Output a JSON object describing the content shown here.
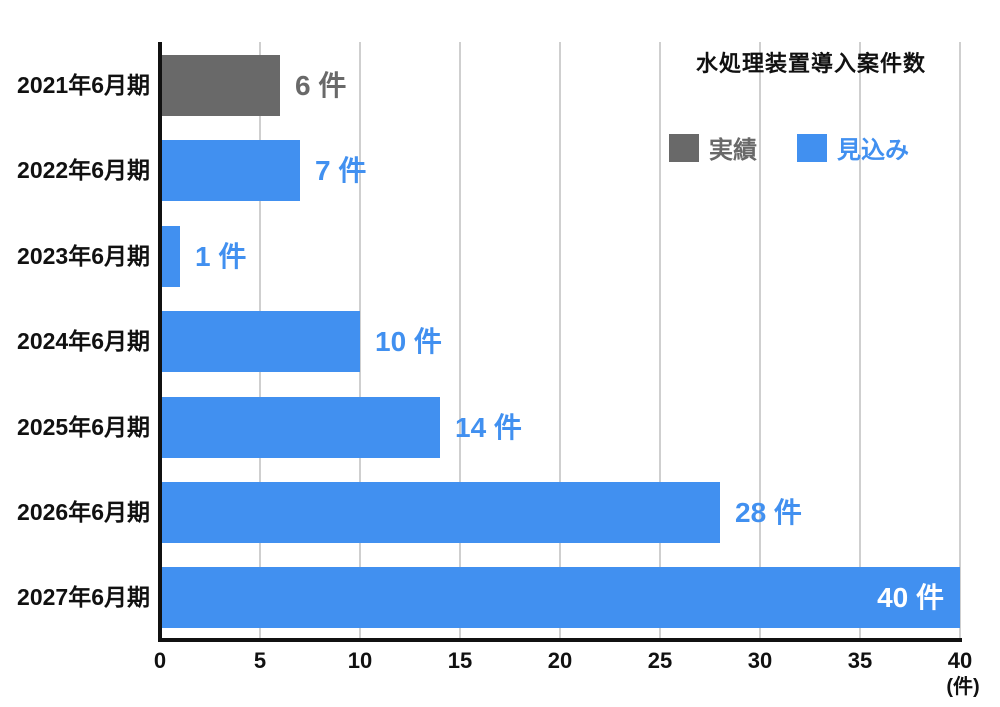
{
  "chart": {
    "title": "水処理装置導入案件数",
    "axis_unit_label": "(件)",
    "colors": {
      "actual": "#696969",
      "forecast": "#4190f0",
      "gridline": "#cfcfcf",
      "axis": "#111111",
      "inside_value_label": "#ffffff",
      "background": "#ffffff"
    }
  },
  "chart_data": {
    "type": "bar",
    "orientation": "horizontal",
    "title": "水処理装置導入案件数",
    "categories": [
      "2021年6月期",
      "2022年6月期",
      "2023年6月期",
      "2024年6月期",
      "2025年6月期",
      "2026年6月期",
      "2027年6月期"
    ],
    "series": [
      {
        "name": "実績",
        "color": "#696969",
        "values": [
          6,
          null,
          null,
          null,
          null,
          null,
          null
        ]
      },
      {
        "name": "見込み",
        "color": "#4190f0",
        "values": [
          null,
          7,
          1,
          10,
          14,
          28,
          40
        ]
      }
    ],
    "bars": [
      {
        "category": "2021年6月期",
        "value": 6,
        "series": "実績",
        "value_label": "6 件",
        "label_position": "outside"
      },
      {
        "category": "2022年6月期",
        "value": 7,
        "series": "見込み",
        "value_label": "7 件",
        "label_position": "outside"
      },
      {
        "category": "2023年6月期",
        "value": 1,
        "series": "見込み",
        "value_label": "1 件",
        "label_position": "outside"
      },
      {
        "category": "2024年6月期",
        "value": 10,
        "series": "見込み",
        "value_label": "10 件",
        "label_position": "outside"
      },
      {
        "category": "2025年6月期",
        "value": 14,
        "series": "見込み",
        "value_label": "14 件",
        "label_position": "outside"
      },
      {
        "category": "2026年6月期",
        "value": 28,
        "series": "見込み",
        "value_label": "28 件",
        "label_position": "outside"
      },
      {
        "category": "2027年6月期",
        "value": 40,
        "series": "見込み",
        "value_label": "40 件",
        "label_position": "inside"
      }
    ],
    "xlim": [
      0,
      40
    ],
    "xticks": [
      0,
      5,
      10,
      15,
      20,
      25,
      30,
      35,
      40
    ],
    "x_unit": "(件)",
    "grid": "vertical",
    "legend": [
      {
        "name": "実績",
        "color": "#696969"
      },
      {
        "name": "見込み",
        "color": "#4190f0"
      }
    ],
    "legend_position": "top-right-inside"
  }
}
